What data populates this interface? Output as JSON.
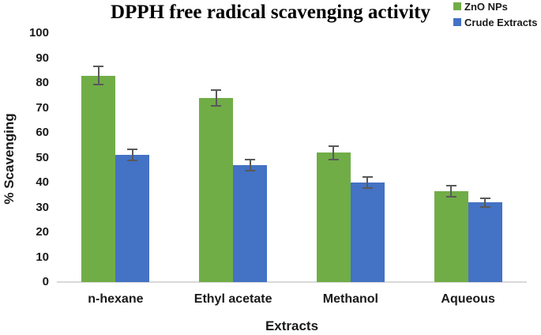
{
  "chart_data": {
    "type": "bar",
    "title": "DPPH free radical scavenging activity",
    "xlabel": "Extracts",
    "ylabel": "% Scavenging",
    "categories": [
      "n-hexane",
      "Ethyl acetate",
      "Methanol",
      "Aqueous"
    ],
    "series": [
      {
        "name": "ZnO NPs",
        "color": "#70AD47",
        "values": [
          83,
          74,
          52,
          36.5
        ],
        "errors": [
          4,
          3.5,
          3,
          2.5
        ]
      },
      {
        "name": "Crude Extracts",
        "color": "#4472C4",
        "values": [
          51,
          47,
          40,
          32
        ],
        "errors": [
          2.5,
          2.5,
          2.5,
          2
        ]
      }
    ],
    "ylim": [
      0,
      100
    ],
    "ytick_step": 10,
    "ytick_labels": [
      "0",
      "10",
      "20",
      "30",
      "40",
      "50",
      "60",
      "70",
      "80",
      "90",
      "100"
    ],
    "grid": false,
    "legend_position": "top-right",
    "error_bar_color": "#595959",
    "axis_line_color": "#D9D9D9",
    "background_color": "#FFFFFF",
    "title_color": "#000000",
    "text_color": "#1A1A1A"
  }
}
